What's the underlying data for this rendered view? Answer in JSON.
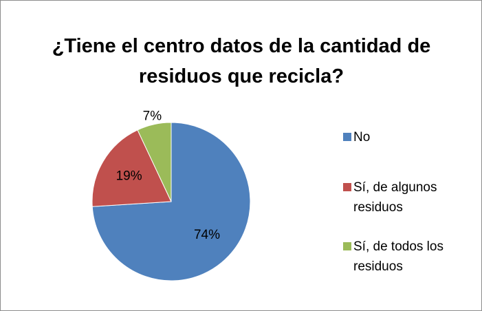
{
  "chart_data": {
    "type": "pie",
    "title": "¿Tiene el centro datos de la cantidad de residuos que recicla?",
    "categories": [
      "No",
      "Sí, de algunos residuos",
      "Sí, de todos los residuos"
    ],
    "values": [
      74,
      19,
      7
    ],
    "value_labels": [
      "74%",
      "19%",
      "7%"
    ],
    "colors": [
      "#4f81bd",
      "#c0504d",
      "#9bbb59"
    ],
    "legend": "right"
  }
}
